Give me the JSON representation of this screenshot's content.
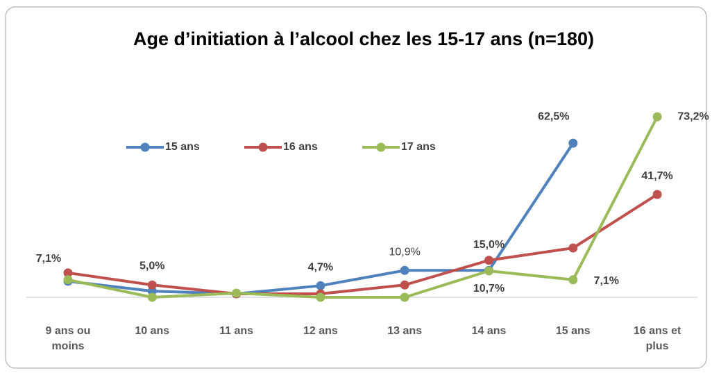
{
  "chart_data": {
    "type": "line",
    "title": "Age d’initiation à l’alcool chez les 15-17 ans (n=180)",
    "categories": [
      "9 ans ou moins",
      "10 ans",
      "11 ans",
      "12 ans",
      "13 ans",
      "14 ans",
      "15 ans",
      "16 ans et plus"
    ],
    "ylim": [
      0,
      80
    ],
    "series": [
      {
        "name": "15 ans",
        "color": "#4f81bd",
        "values": [
          6.5,
          2.5,
          1.4,
          4.7,
          10.9,
          10.9,
          62.5,
          null
        ],
        "value_labels": [
          null,
          null,
          null,
          "4,7%",
          "10,9%",
          null,
          "62,5%",
          null
        ]
      },
      {
        "name": "16 ans",
        "color": "#c0504d",
        "values": [
          9.9,
          5.0,
          1.4,
          1.4,
          5.0,
          15.0,
          20.0,
          41.7
        ],
        "value_labels": [
          null,
          "5,0%",
          null,
          null,
          null,
          "15,0%",
          null,
          "41,7%"
        ]
      },
      {
        "name": "17 ans",
        "color": "#9bbb59",
        "values": [
          7.1,
          0,
          1.7,
          0,
          0,
          10.7,
          7.1,
          73.2
        ],
        "value_labels": [
          "7,1%",
          null,
          null,
          null,
          null,
          "10,7%",
          "7,1%",
          "73,2%"
        ]
      }
    ],
    "legend": "top"
  }
}
